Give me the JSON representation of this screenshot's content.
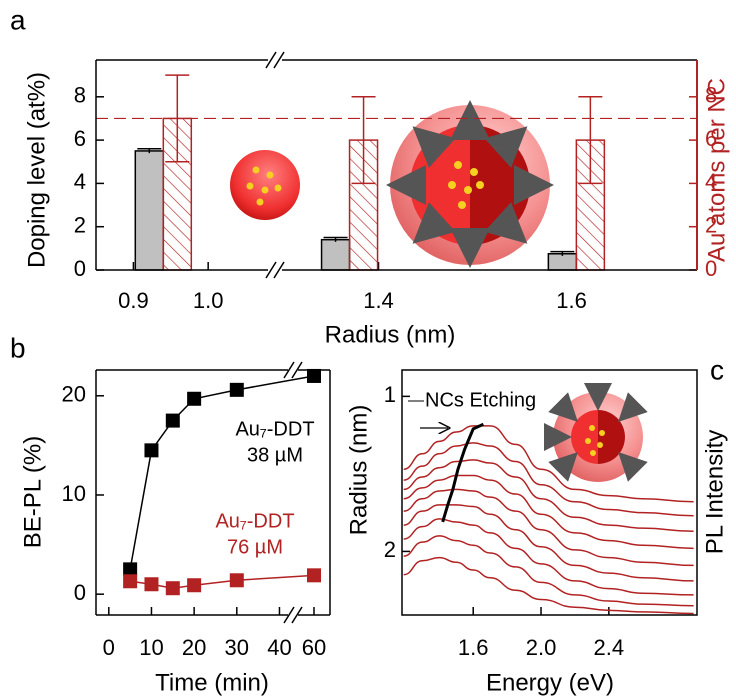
{
  "chart_data": [
    {
      "type": "bar",
      "panel_label": "a",
      "xlabel": "Radius (nm)",
      "ylabel": "Doping level (at%)",
      "y2label": "Au atoms per NC",
      "x_segments": [
        {
          "xlim": [
            0.85,
            1.08
          ],
          "xticks": [
            0.9,
            {
              "value": 1.0,
              "label": "1.0"
            }
          ]
        },
        {
          "xlim": [
            1.3,
            1.73
          ],
          "xticks": [
            1.4,
            1.6
          ]
        }
      ],
      "x": [
        0.94,
        1.37,
        1.605
      ],
      "ylim": [
        0,
        9.7
      ],
      "yticks": [
        0,
        2,
        4,
        6,
        8
      ],
      "y2lim": [
        0,
        9.7
      ],
      "y2ticks": [
        0,
        2,
        4,
        6,
        8
      ],
      "series": [
        {
          "color": "#c0c0c0",
          "values": [
            5.5,
            1.4,
            0.75
          ],
          "errors": [
            0.1,
            0.1,
            0.1
          ]
        },
        {
          "color": "#b22222",
          "axis": "y2",
          "hatch": true,
          "values": [
            7,
            6,
            6
          ],
          "errors": [
            2,
            2,
            2
          ]
        }
      ],
      "reference_line": {
        "axis": "y2",
        "value": 7,
        "color": "#b22222",
        "dashed": true
      }
    },
    {
      "type": "line",
      "panel_label": "b",
      "xlabel": "Time (min)",
      "ylabel": "BE-PL (%)",
      "x_segments": [
        {
          "xlim": [
            -3,
            42
          ],
          "xticks": [
            0,
            10,
            20,
            30,
            40
          ]
        },
        {
          "xlim": [
            55,
            65
          ],
          "xticks": [
            60
          ]
        }
      ],
      "ylim": [
        -2.1,
        22.6
      ],
      "yticks": [
        0,
        10,
        20
      ],
      "x": [
        5,
        10,
        15,
        20,
        30,
        60
      ],
      "series": [
        {
          "color": "#000000",
          "values": [
            2.5,
            14.5,
            17.5,
            19.7,
            20.6,
            22.0
          ]
        },
        {
          "color": "#b22222",
          "values": [
            1.3,
            1.0,
            0.6,
            0.9,
            1.4,
            1.9
          ]
        }
      ],
      "annotations": [
        {
          "lines": [
            "Au₇-DDT",
            "38 µM"
          ],
          "color": "#000000"
        },
        {
          "lines": [
            "Au₇-DDT",
            "76 µM"
          ],
          "color": "#b22222"
        }
      ]
    },
    {
      "type": "spectra",
      "panel_label": "c",
      "xlabel": "Energy (eV)",
      "ylabel": "Radius (nm)",
      "y2label": "PL Intensity",
      "xlim": [
        1.18,
        2.92
      ],
      "xticks": [
        1.6,
        {
          "value": 2.0,
          "label": "2.0"
        },
        2.4
      ],
      "ylim": [
        2.41,
        0.83
      ],
      "yticks": [
        1,
        2
      ],
      "x": [
        1.19,
        1.3,
        1.4,
        1.5,
        1.6,
        1.7,
        1.85,
        2.0,
        2.2,
        2.4,
        2.6,
        2.9
      ],
      "series": [
        {
          "color": "#b22222",
          "values": [
            1.47,
            1.37,
            1.29,
            1.23,
            1.19,
            1.19,
            1.31,
            1.47,
            1.6,
            1.64,
            1.66,
            1.68
          ]
        },
        {
          "color": "#b22222",
          "values": [
            1.54,
            1.45,
            1.37,
            1.32,
            1.3,
            1.32,
            1.42,
            1.57,
            1.68,
            1.73,
            1.75,
            1.77
          ]
        },
        {
          "color": "#b22222",
          "values": [
            1.6,
            1.52,
            1.46,
            1.42,
            1.41,
            1.43,
            1.52,
            1.66,
            1.78,
            1.83,
            1.85,
            1.87
          ]
        },
        {
          "color": "#b22222",
          "values": [
            1.66,
            1.59,
            1.54,
            1.51,
            1.51,
            1.54,
            1.63,
            1.76,
            1.88,
            1.93,
            1.96,
            1.98
          ]
        },
        {
          "color": "#b22222",
          "values": [
            1.74,
            1.66,
            1.61,
            1.6,
            1.61,
            1.65,
            1.74,
            1.86,
            1.99,
            2.04,
            2.07,
            2.09
          ]
        },
        {
          "color": "#b22222",
          "values": [
            1.83,
            1.74,
            1.7,
            1.7,
            1.71,
            1.76,
            1.86,
            1.97,
            2.09,
            2.14,
            2.17,
            2.19
          ]
        },
        {
          "color": "#b22222",
          "values": [
            1.92,
            1.84,
            1.79,
            1.81,
            1.83,
            1.88,
            1.98,
            2.08,
            2.19,
            2.24,
            2.27,
            2.28
          ]
        },
        {
          "color": "#b22222",
          "values": [
            2.03,
            1.94,
            1.9,
            1.93,
            1.96,
            2.01,
            2.1,
            2.2,
            2.28,
            2.32,
            2.34,
            2.35
          ]
        },
        {
          "color": "#b22222",
          "values": [
            2.15,
            2.06,
            2.04,
            2.07,
            2.12,
            2.17,
            2.25,
            2.31,
            2.36,
            2.38,
            2.39,
            2.4
          ]
        }
      ],
      "peak_trace": {
        "color": "#000000",
        "x": [
          1.42,
          1.45,
          1.48,
          1.51,
          1.55,
          1.6,
          1.66
        ],
        "values": [
          1.81,
          1.7,
          1.6,
          1.47,
          1.34,
          1.21,
          1.18
        ]
      },
      "annotation": "NCs Etching"
    }
  ]
}
